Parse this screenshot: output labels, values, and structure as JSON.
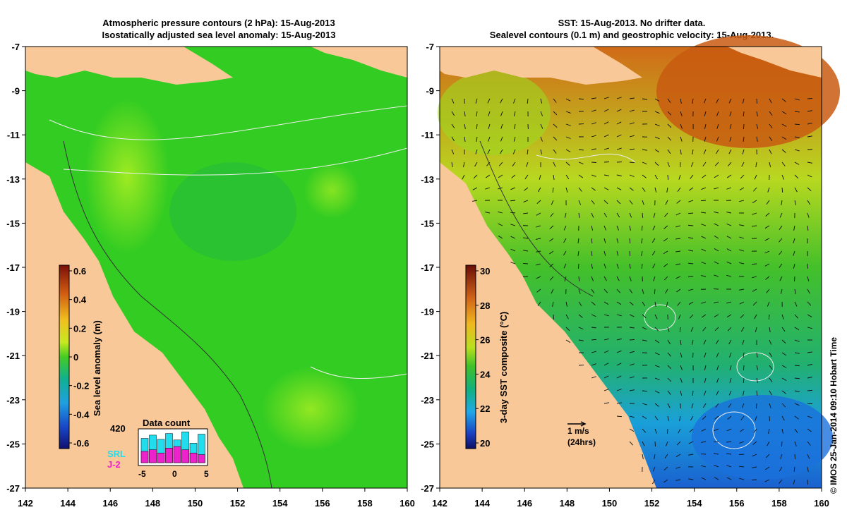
{
  "left_panel": {
    "title_line1": "Atmospheric pressure contours (2 hPa): 15-Aug-2013",
    "title_line2": "Isostatically adjusted sea level anomaly: 15-Aug-2013",
    "x_ticks": [
      "142",
      "144",
      "146",
      "148",
      "150",
      "152",
      "154",
      "156",
      "158",
      "160"
    ],
    "y_ticks": [
      "-7",
      "-9",
      "-11",
      "-13",
      "-15",
      "-17",
      "-19",
      "-21",
      "-23",
      "-25",
      "-27"
    ],
    "colorbar": {
      "label": "Sea level anomaly (m)",
      "ticks": [
        "0.6",
        "0.4",
        "0.2",
        "0",
        "-0.2",
        "-0.4",
        "-0.6"
      ]
    },
    "data_count": {
      "title": "Data count",
      "max_label": "420",
      "x_ticks": [
        "-5",
        "0",
        "5"
      ],
      "series_srl": "SRL",
      "series_j2": "J-2"
    }
  },
  "right_panel": {
    "title_line1": "SST: 15-Aug-2013. No drifter data.",
    "title_line2": "Sealevel contours (0.1 m) and geostrophic velocity: 15-Aug-2013.",
    "x_ticks": [
      "142",
      "144",
      "146",
      "148",
      "150",
      "152",
      "154",
      "156",
      "158",
      "160"
    ],
    "y_ticks": [
      "-7",
      "-9",
      "-11",
      "-13",
      "-15",
      "-17",
      "-19",
      "-21",
      "-23",
      "-25",
      "-27"
    ],
    "colorbar": {
      "label": "3-day SST composite (°C)",
      "ticks": [
        "30",
        "28",
        "26",
        "24",
        "22",
        "20"
      ]
    },
    "velocity_scale": {
      "label": "1 m/s",
      "sublabel": "(24hrs)"
    }
  },
  "credit": "© IMOS 25-Jan-2014 09:10 Hobart Time",
  "colors": {
    "land": "#f8c898",
    "sla_green": "#33cc22",
    "sla_yellow_green": "#99ee22",
    "sst_orange": "#d87018",
    "sst_blue": "#1f7fe6"
  }
}
